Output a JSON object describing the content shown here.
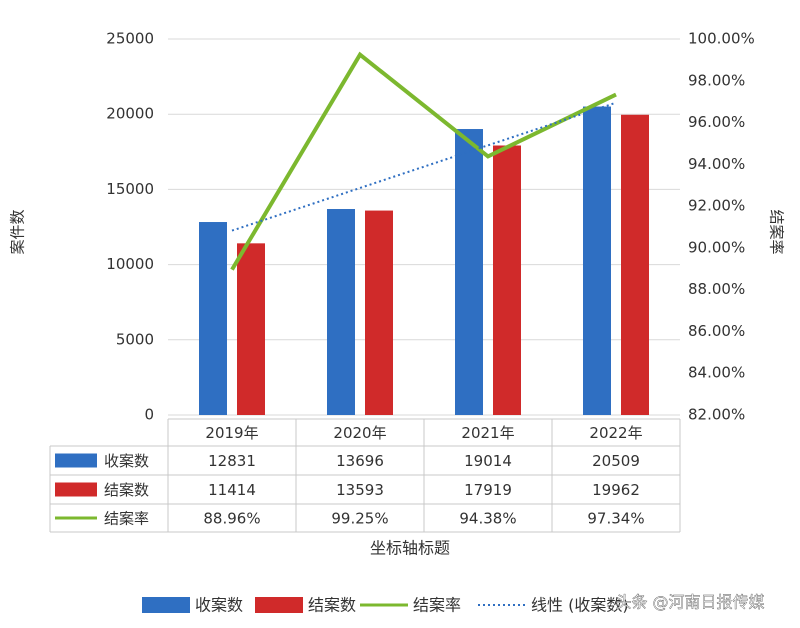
{
  "chart_data": {
    "type": "bar",
    "categories": [
      "2019年",
      "2020年",
      "2021年",
      "2022年"
    ],
    "y_label": "案件数",
    "y2_label": "结案率",
    "x_label": "坐标轴标题",
    "ylim": [
      0,
      25000
    ],
    "yticks": [
      0,
      5000,
      10000,
      15000,
      20000,
      25000
    ],
    "y2lim": [
      82,
      100
    ],
    "y2ticks": [
      {
        "value": 82,
        "label": "82.00%"
      },
      {
        "value": 84,
        "label": "84.00%"
      },
      {
        "value": 86,
        "label": "86.00%"
      },
      {
        "value": 88,
        "label": "88.00%"
      },
      {
        "value": 90,
        "label": "90.00%"
      },
      {
        "value": 92,
        "label": "92.00%"
      },
      {
        "value": 94,
        "label": "94.00%"
      },
      {
        "value": 96,
        "label": "96.00%"
      },
      {
        "value": 98,
        "label": "98.00%"
      },
      {
        "value": 100,
        "label": "100.00%"
      }
    ],
    "grid": true,
    "series": [
      {
        "name": "收案数",
        "type": "bar",
        "color": "#2f6fc2",
        "values": [
          12831,
          13696,
          19014,
          20509
        ]
      },
      {
        "name": "结案数",
        "type": "bar",
        "color": "#d02a2a",
        "values": [
          11414,
          13593,
          17919,
          19962
        ]
      },
      {
        "name": "结案率",
        "type": "line",
        "axis": "y2",
        "color": "#7cb82f",
        "values": [
          88.96,
          99.25,
          94.38,
          97.34
        ],
        "value_labels": [
          "88.96%",
          "99.25%",
          "94.38%",
          "97.34%"
        ]
      },
      {
        "name": "线性 (收案数)",
        "type": "trend",
        "color": "#2f6fc2",
        "values": [
          12260,
          15095,
          17930,
          20765
        ]
      }
    ],
    "watermark": "头条 @河南日报传媒"
  }
}
